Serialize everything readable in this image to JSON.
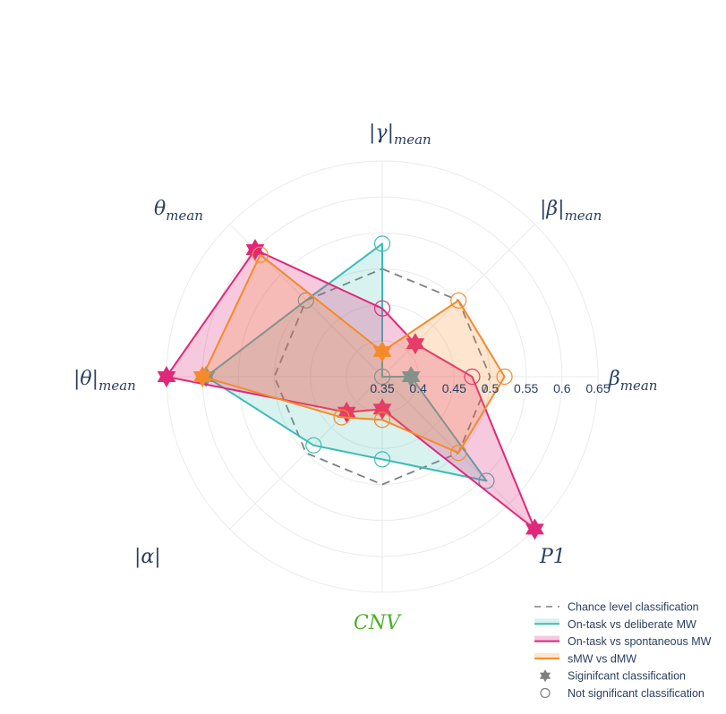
{
  "chart_data": {
    "type": "radar",
    "axes": [
      {
        "label": "|γ|",
        "sub": "mean",
        "abs": true,
        "color": "#2a3f5f"
      },
      {
        "label": "|β|",
        "sub": "mean",
        "abs": true,
        "color": "#2a3f5f"
      },
      {
        "label": "β",
        "sub": "mean",
        "abs": false,
        "color": "#2a3f5f"
      },
      {
        "label": "P1",
        "sub": "",
        "abs": false,
        "color": "#2a3f5f"
      },
      {
        "label": "CNV",
        "sub": "",
        "abs": false,
        "color": "#4caf2a"
      },
      {
        "label": "|α|",
        "sub": "",
        "abs": true,
        "color": "#2a3f5f"
      },
      {
        "label": "|θ|",
        "sub": "mean",
        "abs": true,
        "color": "#2a3f5f"
      },
      {
        "label": "θ",
        "sub": "mean",
        "abs": false,
        "color": "#2a3f5f"
      }
    ],
    "radial_range": [
      0.35,
      0.65
    ],
    "radial_ticks": [
      "0.35",
      "0.4",
      "0.45",
      "0.5",
      "0.55",
      "0.6",
      "0.65"
    ],
    "series": [
      {
        "name": "Chance level classification",
        "color": "#7f7f7f",
        "dash": true,
        "fill": false,
        "values": [
          0.5,
          0.5,
          0.5,
          0.5,
          0.5,
          0.5,
          0.5,
          0.5
        ],
        "significant": []
      },
      {
        "name": "On-task vs deliberate MW",
        "color": "#3dbcb4",
        "fill": "rgba(61,188,180,0.20)",
        "values": [
          0.535,
          0.35,
          0.39,
          0.555,
          0.465,
          0.485,
          0.595,
          0.5
        ],
        "significant": [
          false,
          false,
          true,
          false,
          false,
          false,
          true,
          false
        ]
      },
      {
        "name": "On-task vs spontaneous MW",
        "color": "#e0287a",
        "fill": "rgba(224,40,122,0.25)",
        "values": [
          0.445,
          0.415,
          0.475,
          0.65,
          0.395,
          0.42,
          0.65,
          0.6
        ],
        "significant": [
          false,
          true,
          false,
          true,
          true,
          true,
          true,
          true
        ]
      },
      {
        "name": "sMW vs dMW",
        "color": "#f58a2a",
        "fill": "rgba(245,138,42,0.22)",
        "values": [
          0.385,
          0.5,
          0.52,
          0.5,
          0.41,
          0.43,
          0.6,
          0.59
        ],
        "significant": [
          true,
          false,
          false,
          false,
          false,
          false,
          true,
          false
        ]
      }
    ],
    "legend": {
      "position": "bottom-right",
      "entries": [
        "Chance level classification",
        "On-task vs deliberate MW",
        "On-task vs spontaneous MW",
        "sMW vs dMW",
        "Siginifcant classification",
        "Not significant classification"
      ],
      "marker_color": "#7f7f7f"
    }
  }
}
